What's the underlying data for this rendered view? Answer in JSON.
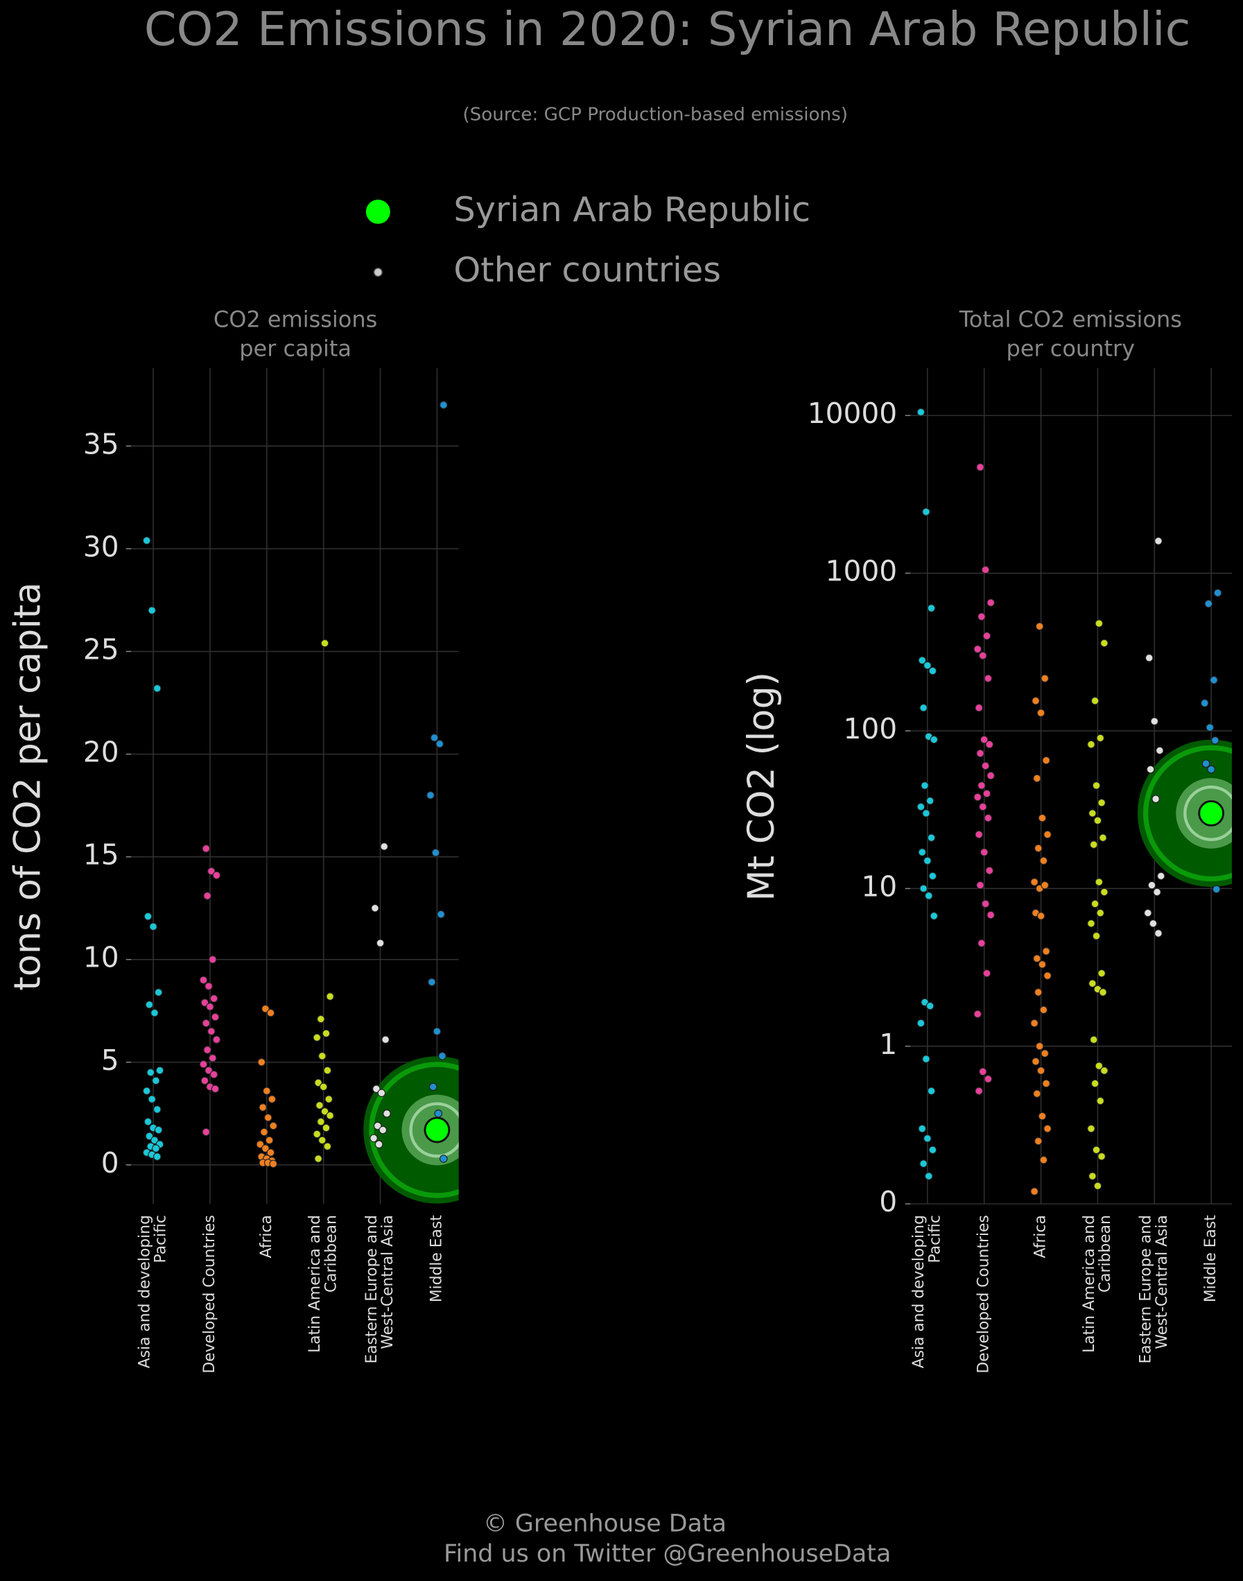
{
  "title": "CO2 Emissions in 2020: Syrian Arab Republic",
  "subtitle": "(Source: GCP Production-based emissions)",
  "legend": [
    {
      "name": "Syrian Arab Republic",
      "color": "#00ff00"
    },
    {
      "name": "Other countries",
      "color": "#cccccc"
    }
  ],
  "footer": [
    "© Greenhouse Data",
    "Find us on Twitter @GreenhouseData"
  ],
  "chart_data": [
    {
      "type": "strip",
      "title": [
        "CO2 emissions",
        "per capita"
      ],
      "ylabel": "tons of CO2 per capita",
      "ylim": [
        -1.9,
        38.8
      ],
      "yticks": [
        0,
        5,
        10,
        15,
        20,
        25,
        30,
        35
      ],
      "grid": true,
      "groups": [
        {
          "category": "Asia and developing\nPacific",
          "color": "#1ac8d8",
          "values": [
            30.4,
            27,
            23.2,
            12.1,
            11.6,
            8.4,
            7.8,
            7.4,
            4.6,
            4.5,
            4.1,
            3.6,
            3.2,
            2.7,
            2.1,
            1.8,
            1.7,
            1.4,
            1.2,
            1.0,
            0.9,
            0.8,
            0.6,
            0.5,
            0.4
          ]
        },
        {
          "category": "Developed Countries",
          "color": "#e8409a",
          "values": [
            15.4,
            14.3,
            14.1,
            13.1,
            10.0,
            9.0,
            8.7,
            8.1,
            7.9,
            7.7,
            7.2,
            6.9,
            6.5,
            6.1,
            5.6,
            5.2,
            4.9,
            4.6,
            4.4,
            4.1,
            3.8,
            3.7,
            1.6
          ]
        },
        {
          "category": "Africa",
          "color": "#f08020",
          "values": [
            7.6,
            7.4,
            5.0,
            3.6,
            3.2,
            2.8,
            2.3,
            1.9,
            1.6,
            1.2,
            1.0,
            0.8,
            0.6,
            0.4,
            0.3,
            0.2,
            0.1,
            0.1,
            0.05
          ]
        },
        {
          "category": "Latin America and\nCaribbean",
          "color": "#c8dc20",
          "values": [
            25.4,
            8.2,
            7.1,
            6.4,
            6.2,
            5.3,
            4.6,
            4.0,
            3.8,
            3.2,
            2.9,
            2.6,
            2.4,
            2.1,
            1.8,
            1.5,
            1.2,
            0.9,
            0.3
          ]
        },
        {
          "category": "Eastern Europe and\nWest-Central Asia",
          "color": "#e0e0e0",
          "values": [
            15.5,
            12.5,
            10.8,
            6.1,
            3.7,
            3.5,
            2.5,
            1.9,
            1.7,
            1.3,
            1.0
          ]
        },
        {
          "category": "Middle East",
          "color": "#2090d0",
          "values": [
            37.0,
            20.8,
            20.5,
            18.0,
            15.2,
            12.2,
            8.9,
            6.5,
            5.3,
            3.8,
            2.5,
            0.3
          ]
        }
      ],
      "highlight": {
        "category": "Middle East",
        "value": 1.7
      }
    },
    {
      "type": "strip",
      "title": [
        "Total CO2 emissions",
        "per country"
      ],
      "ylabel": "Mt CO2 (log)",
      "yscale": "log",
      "ylim": [
        0.1,
        20000
      ],
      "yticks": [
        {
          "value": 0.1,
          "label": "0"
        },
        1,
        10,
        100,
        1000,
        10000
      ],
      "grid": true,
      "groups": [
        {
          "category": "Asia and developing\nPacific",
          "color": "#1ac8d8",
          "values": [
            10500,
            2450,
            600,
            280,
            260,
            240,
            140,
            92,
            88,
            45,
            36,
            33,
            30,
            21,
            17,
            15,
            12,
            10,
            9,
            6.7,
            1.9,
            1.8,
            1.4,
            0.83,
            0.52,
            0.3,
            0.26,
            0.22,
            0.18,
            0.15
          ]
        },
        {
          "category": "Developed Countries",
          "color": "#e8409a",
          "values": [
            4700,
            1050,
            650,
            530,
            400,
            330,
            300,
            215,
            140,
            88,
            82,
            72,
            60,
            52,
            45,
            40,
            38,
            33,
            28,
            22,
            17,
            13,
            10.5,
            8,
            6.8,
            4.5,
            2.9,
            1.6,
            0.69,
            0.62,
            0.52
          ]
        },
        {
          "category": "Africa",
          "color": "#f08020",
          "values": [
            460,
            215,
            155,
            130,
            65,
            50,
            28,
            22,
            18,
            15,
            11,
            10,
            10.5,
            7,
            6.7,
            4,
            3.6,
            3.3,
            2.8,
            2.2,
            1.7,
            1.4,
            1.0,
            0.9,
            0.8,
            0.7,
            0.58,
            0.5,
            0.36,
            0.3,
            0.25,
            0.19,
            0.12
          ]
        },
        {
          "category": "Latin America and\nCaribbean",
          "color": "#c8dc20",
          "values": [
            480,
            360,
            155,
            90,
            82,
            45,
            35,
            30,
            27,
            21,
            19,
            11,
            9.5,
            8,
            7,
            6,
            5,
            2.9,
            2.5,
            2.3,
            2.2,
            1.1,
            0.75,
            0.7,
            0.58,
            0.45,
            0.3,
            0.22,
            0.2,
            0.15,
            0.13
          ]
        },
        {
          "category": "Eastern Europe and\nWest-Central Asia",
          "color": "#e0e0e0",
          "values": [
            1600,
            290,
            115,
            75,
            57,
            37,
            12,
            10.5,
            9.5,
            7,
            6,
            5.2
          ]
        },
        {
          "category": "Middle East",
          "color": "#2090d0",
          "values": [
            750,
            640,
            210,
            150,
            105,
            87,
            62,
            57,
            9.9
          ]
        }
      ],
      "highlight": {
        "category": "Middle East",
        "value": 30
      }
    }
  ]
}
